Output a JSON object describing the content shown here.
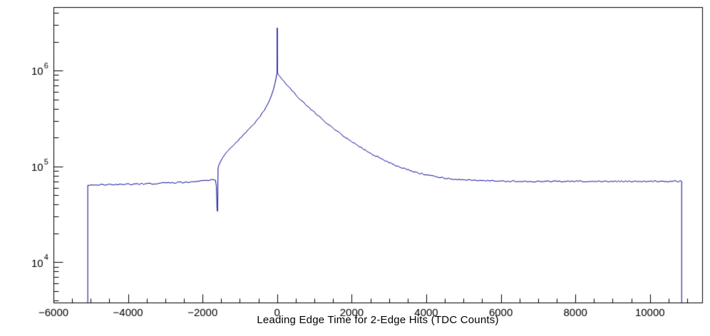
{
  "chart_data": {
    "type": "line",
    "title": "",
    "xlabel": "Leading Edge Time for 2-Edge Hits (TDC Counts)",
    "ylabel": "",
    "x_scale": "linear",
    "y_scale": "log",
    "xlim": [
      -6000,
      11400
    ],
    "ylim": [
      3800,
      4600000
    ],
    "grid": false,
    "legend": "none",
    "x_major_ticks": [
      -6000,
      -4000,
      -2000,
      0,
      2000,
      4000,
      6000,
      8000,
      10000
    ],
    "x_tick_labels": [
      "−6000",
      "−4000",
      "−2000",
      "0",
      "2000",
      "4000",
      "6000",
      "8000",
      "10000"
    ],
    "x_minor_step": 500,
    "y_major_ticks": [
      10000,
      100000,
      1000000
    ],
    "y_tick_base": "10",
    "y_tick_exponents": [
      "4",
      "5",
      "6"
    ],
    "line_color": "#000099",
    "frame_color": "#000000",
    "background_color": "#ffffff",
    "series": [
      {
        "points": [
          [
            -5080,
            3800
          ],
          [
            -5080,
            63500
          ],
          [
            -4900,
            64000
          ],
          [
            -4700,
            64200
          ],
          [
            -4500,
            64500
          ],
          [
            -4300,
            64800
          ],
          [
            -4100,
            65000
          ],
          [
            -3900,
            65200
          ],
          [
            -3700,
            65500
          ],
          [
            -3500,
            65800
          ],
          [
            -3300,
            66200
          ],
          [
            -3100,
            66700
          ],
          [
            -2900,
            67200
          ],
          [
            -2700,
            67800
          ],
          [
            -2500,
            68500
          ],
          [
            -2300,
            69300
          ],
          [
            -2100,
            70300
          ],
          [
            -1950,
            71200
          ],
          [
            -1850,
            72000
          ],
          [
            -1750,
            72800
          ],
          [
            -1690,
            73200
          ],
          [
            -1655,
            72000
          ],
          [
            -1630,
            62000
          ],
          [
            -1612,
            36000
          ],
          [
            -1600,
            34000
          ],
          [
            -1592,
            52000
          ],
          [
            -1585,
            95000
          ],
          [
            -1578,
            99000
          ],
          [
            -1560,
            104000
          ],
          [
            -1520,
            112000
          ],
          [
            -1470,
            122000
          ],
          [
            -1400,
            134000
          ],
          [
            -1300,
            150000
          ],
          [
            -1200,
            164000
          ],
          [
            -1100,
            179000
          ],
          [
            -1000,
            196000
          ],
          [
            -900,
            214000
          ],
          [
            -800,
            235000
          ],
          [
            -700,
            258000
          ],
          [
            -600,
            285000
          ],
          [
            -500,
            318000
          ],
          [
            -400,
            360000
          ],
          [
            -300,
            415000
          ],
          [
            -250,
            450000
          ],
          [
            -200,
            495000
          ],
          [
            -150,
            555000
          ],
          [
            -100,
            635000
          ],
          [
            -60,
            730000
          ],
          [
            -30,
            830000
          ],
          [
            -10,
            920000
          ],
          [
            0,
            950000
          ],
          [
            3,
            2800000
          ],
          [
            8,
            945000
          ],
          [
            30,
            910000
          ],
          [
            60,
            880000
          ],
          [
            100,
            845000
          ],
          [
            150,
            800000
          ],
          [
            200,
            760000
          ],
          [
            300,
            685000
          ],
          [
            400,
            620000
          ],
          [
            500,
            563000
          ],
          [
            600,
            513000
          ],
          [
            700,
            469000
          ],
          [
            800,
            430000
          ],
          [
            900,
            396000
          ],
          [
            1000,
            365000
          ],
          [
            1150,
            325000
          ],
          [
            1300,
            290000
          ],
          [
            1450,
            260000
          ],
          [
            1600,
            234000
          ],
          [
            1800,
            205000
          ],
          [
            2000,
            181000
          ],
          [
            2200,
            161000
          ],
          [
            2400,
            145000
          ],
          [
            2600,
            131000
          ],
          [
            2800,
            119000
          ],
          [
            3000,
            110000
          ],
          [
            3200,
            102000
          ],
          [
            3400,
            95500
          ],
          [
            3600,
            90000
          ],
          [
            3800,
            85500
          ],
          [
            4000,
            82000
          ],
          [
            4200,
            79000
          ],
          [
            4400,
            76600
          ],
          [
            4600,
            74800
          ],
          [
            4800,
            73400
          ],
          [
            5000,
            72400
          ],
          [
            5300,
            71400
          ],
          [
            5600,
            70800
          ],
          [
            6000,
            70300
          ],
          [
            6500,
            70000
          ],
          [
            7000,
            70000
          ],
          [
            7500,
            70000
          ],
          [
            8000,
            70100
          ],
          [
            8500,
            70000
          ],
          [
            9000,
            69900
          ],
          [
            9500,
            70000
          ],
          [
            10000,
            70000
          ],
          [
            10850,
            70000
          ],
          [
            10850,
            3800
          ]
        ]
      }
    ]
  }
}
